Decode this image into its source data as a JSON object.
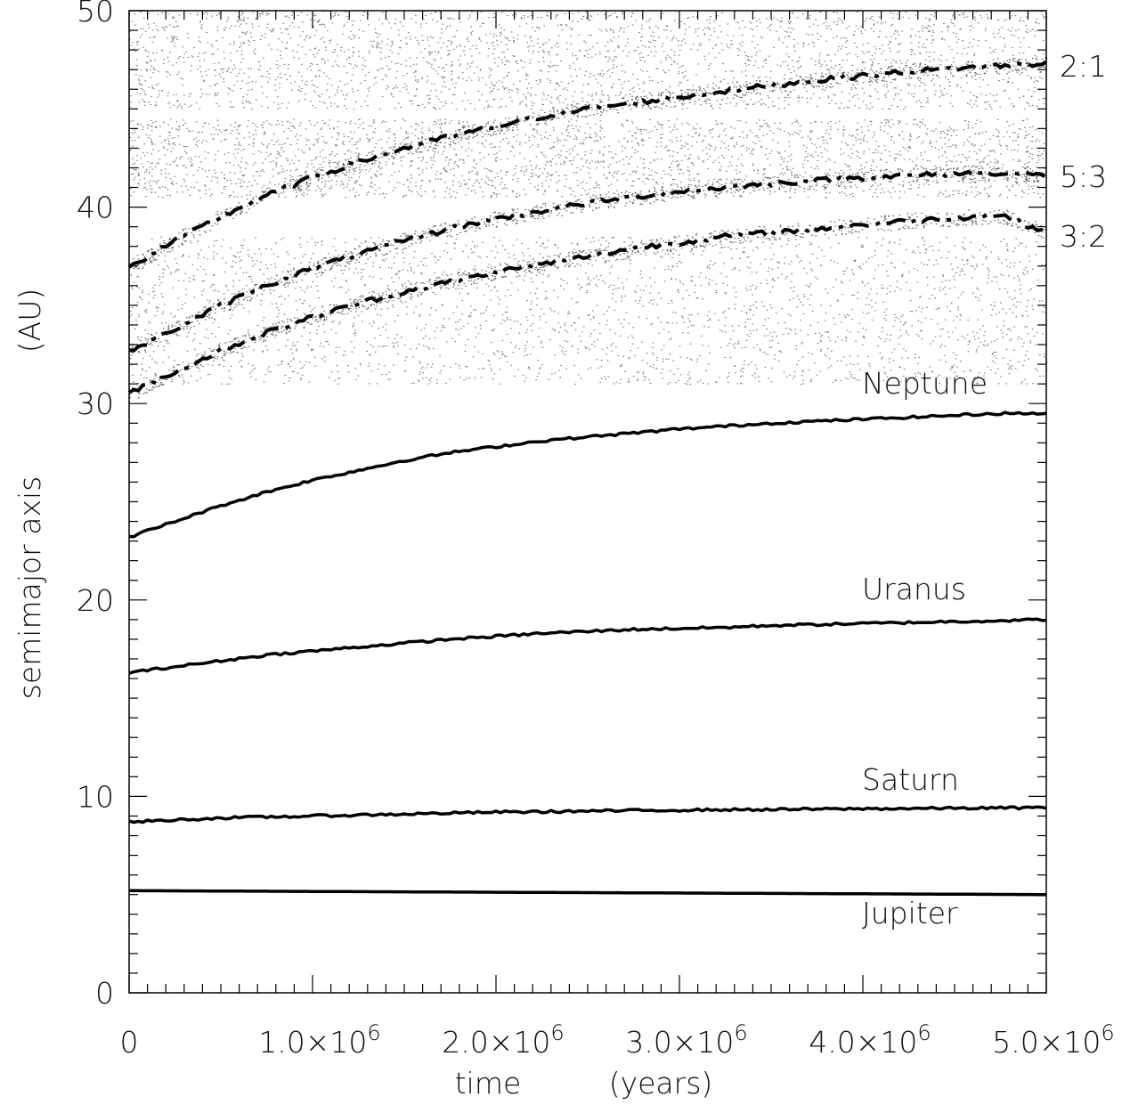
{
  "chart_data": {
    "type": "line",
    "xlabel": "time",
    "xunit": "(years)",
    "ylabel": "semimajor axis",
    "yunit": "(AU)",
    "xlim": [
      0,
      5000000
    ],
    "ylim": [
      0,
      50
    ],
    "x_ticks": [
      {
        "value": 0,
        "label": "0",
        "exp": ""
      },
      {
        "value": 1000000,
        "label": "1.0×10",
        "exp": "6"
      },
      {
        "value": 2000000,
        "label": "2.0×10",
        "exp": "6"
      },
      {
        "value": 3000000,
        "label": "3.0×10",
        "exp": "6"
      },
      {
        "value": 4000000,
        "label": "4.0×10",
        "exp": "6"
      },
      {
        "value": 5000000,
        "label": "5.0×10",
        "exp": "6"
      }
    ],
    "y_ticks": [
      {
        "value": 0,
        "label": "0"
      },
      {
        "value": 10,
        "label": "10"
      },
      {
        "value": 20,
        "label": "20"
      },
      {
        "value": 30,
        "label": "30"
      },
      {
        "value": 40,
        "label": "40"
      },
      {
        "value": 50,
        "label": "50"
      }
    ],
    "x": [
      0,
      250000,
      500000,
      750000,
      1000000,
      1250000,
      1500000,
      1750000,
      2000000,
      2250000,
      2500000,
      2750000,
      3000000,
      3250000,
      3500000,
      3750000,
      4000000,
      4250000,
      4500000,
      4750000,
      5000000
    ],
    "series": [
      {
        "name": "Jupiter",
        "style": "solid",
        "values": [
          5.2,
          5.19,
          5.18,
          5.17,
          5.16,
          5.15,
          5.14,
          5.13,
          5.12,
          5.11,
          5.1,
          5.09,
          5.08,
          5.07,
          5.06,
          5.05,
          5.04,
          5.03,
          5.02,
          5.01,
          5.0
        ]
      },
      {
        "name": "Saturn",
        "style": "solid",
        "values": [
          8.7,
          8.8,
          8.9,
          8.95,
          9.0,
          9.05,
          9.1,
          9.15,
          9.2,
          9.22,
          9.25,
          9.28,
          9.3,
          9.32,
          9.33,
          9.35,
          9.37,
          9.38,
          9.4,
          9.41,
          9.43
        ]
      },
      {
        "name": "Uranus",
        "style": "solid",
        "values": [
          16.3,
          16.6,
          16.9,
          17.2,
          17.4,
          17.6,
          17.8,
          18.0,
          18.15,
          18.3,
          18.4,
          18.5,
          18.55,
          18.6,
          18.7,
          18.75,
          18.8,
          18.85,
          18.9,
          18.95,
          19.0
        ]
      },
      {
        "name": "Neptune",
        "style": "solid",
        "values": [
          23.2,
          24.0,
          24.8,
          25.5,
          26.1,
          26.6,
          27.1,
          27.5,
          27.8,
          28.1,
          28.3,
          28.5,
          28.7,
          28.85,
          29.0,
          29.1,
          29.2,
          29.3,
          29.4,
          29.5,
          29.5
        ]
      },
      {
        "name": "3:2",
        "style": "dash-dot",
        "values": [
          30.5,
          31.6,
          32.7,
          33.6,
          34.4,
          35.1,
          35.7,
          36.2,
          36.7,
          37.1,
          37.5,
          37.9,
          38.2,
          38.5,
          38.7,
          38.9,
          39.1,
          39.3,
          39.45,
          39.6,
          38.7
        ]
      },
      {
        "name": "5:3",
        "style": "dash-dot",
        "values": [
          32.6,
          33.8,
          35.0,
          36.0,
          36.9,
          37.6,
          38.3,
          38.9,
          39.4,
          39.8,
          40.2,
          40.5,
          40.8,
          41.0,
          41.2,
          41.35,
          41.5,
          41.6,
          41.7,
          41.75,
          41.6
        ]
      },
      {
        "name": "2:1",
        "style": "dash-dot",
        "values": [
          36.9,
          38.3,
          39.5,
          40.6,
          41.5,
          42.3,
          43.0,
          43.6,
          44.1,
          44.6,
          45.0,
          45.3,
          45.6,
          45.9,
          46.2,
          46.45,
          46.7,
          46.9,
          47.05,
          47.2,
          47.3
        ]
      }
    ],
    "resonance_labels": [
      "2:1",
      "5:3",
      "3:2"
    ],
    "planet_labels": [
      "Neptune",
      "Uranus",
      "Saturn",
      "Jupiter"
    ],
    "scatter_bands": [
      {
        "ymin": 31,
        "ymax": 38.5
      },
      {
        "ymin": 40.5,
        "ymax": 44.5
      },
      {
        "ymin": 45,
        "ymax": 50
      }
    ],
    "grid": false,
    "legend": "none"
  }
}
